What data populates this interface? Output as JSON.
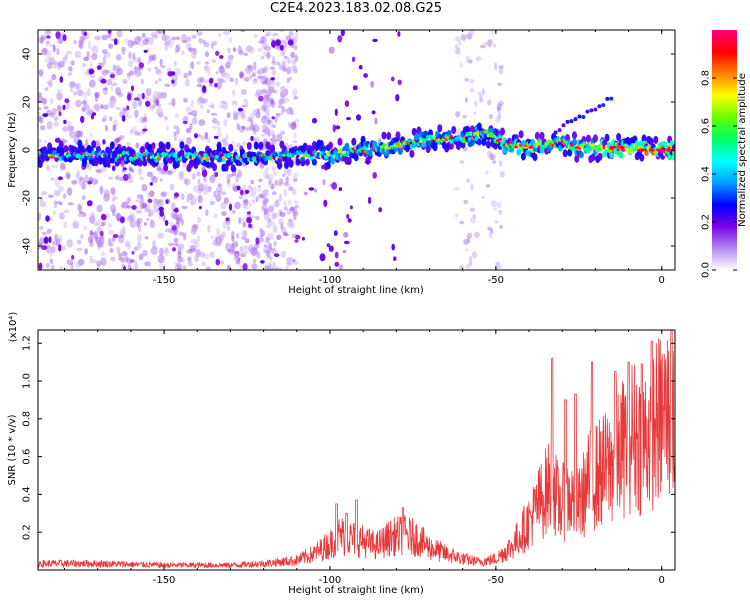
{
  "title": "C2E4.2023.183.02.08.G25",
  "chart_data": [
    {
      "type": "heatmap",
      "name": "spectrogram",
      "xlabel": "Height of straight line (km)",
      "ylabel": "Frequency (Hz)",
      "xlim": [
        -188,
        4
      ],
      "ylim": [
        -50,
        50
      ],
      "xticks": [
        -150,
        -100,
        -50,
        0
      ],
      "yticks": [
        -40,
        -20,
        0,
        20,
        40
      ],
      "colorbar": {
        "label": "Normalized spectral amplitude",
        "range": [
          0,
          1
        ],
        "ticks": [
          "0.0",
          "0.2",
          "0.4",
          "0.6",
          "0.8"
        ],
        "colormap": [
          "#ffffff",
          "#b388f0",
          "#7a00e6",
          "#0000ff",
          "#00a0ff",
          "#00ffff",
          "#00ff66",
          "#66ff00",
          "#ffff00",
          "#ff8000",
          "#ff0000",
          "#ff0080"
        ]
      },
      "ridge": {
        "description_points": [
          [
            -188,
            -2
          ],
          [
            -150,
            -3
          ],
          [
            -120,
            -3
          ],
          [
            -100,
            -2
          ],
          [
            -90,
            0
          ],
          [
            -80,
            2
          ],
          [
            -70,
            4
          ],
          [
            -60,
            5
          ],
          [
            -52,
            7
          ],
          [
            -48,
            3
          ],
          [
            -40,
            1
          ],
          [
            -30,
            3
          ],
          [
            -25,
            1
          ],
          [
            -15,
            1
          ],
          [
            -5,
            0
          ],
          [
            3,
            0
          ]
        ],
        "peak_amplitude_region_x": [
          -20,
          3
        ]
      }
    },
    {
      "type": "line",
      "name": "snr",
      "xlabel": "Height of straight line (km)",
      "ylabel": "SNR (10 * v/v)",
      "yunit_label": "(x10⁴)",
      "xlim": [
        -188,
        4
      ],
      "ylim": [
        0,
        1.27
      ],
      "xticks": [
        -150,
        -100,
        -50,
        0
      ],
      "yticks": [
        0.2,
        0.4,
        0.6,
        0.8,
        1.0,
        1.2
      ],
      "ytick_labels": [
        "0.2",
        "0.4",
        "0.6",
        "0.8",
        "1.0",
        "1.2"
      ],
      "color": "#e8383a",
      "envelope": [
        [
          -188,
          0.04
        ],
        [
          -170,
          0.04
        ],
        [
          -150,
          0.03
        ],
        [
          -130,
          0.03
        ],
        [
          -120,
          0.04
        ],
        [
          -110,
          0.06
        ],
        [
          -105,
          0.1
        ],
        [
          -100,
          0.16
        ],
        [
          -97,
          0.22
        ],
        [
          -94,
          0.2
        ],
        [
          -90,
          0.18
        ],
        [
          -86,
          0.15
        ],
        [
          -82,
          0.2
        ],
        [
          -78,
          0.22
        ],
        [
          -74,
          0.2
        ],
        [
          -70,
          0.14
        ],
        [
          -65,
          0.1
        ],
        [
          -60,
          0.07
        ],
        [
          -55,
          0.05
        ],
        [
          -50,
          0.07
        ],
        [
          -45,
          0.15
        ],
        [
          -40,
          0.3
        ],
        [
          -36,
          0.45
        ],
        [
          -33,
          0.55
        ],
        [
          -31,
          0.4
        ],
        [
          -28,
          0.45
        ],
        [
          -25,
          0.4
        ],
        [
          -22,
          0.55
        ],
        [
          -19,
          0.6
        ],
        [
          -15,
          0.65
        ],
        [
          -12,
          0.75
        ],
        [
          -9,
          0.85
        ],
        [
          -6,
          0.8
        ],
        [
          -3,
          0.88
        ],
        [
          0,
          0.95
        ],
        [
          2,
          0.98
        ],
        [
          4,
          0.9
        ]
      ],
      "peaks": [
        [
          -98,
          0.35
        ],
        [
          -95,
          0.3
        ],
        [
          -92,
          0.37
        ],
        [
          -78,
          0.33
        ],
        [
          -33,
          1.12
        ],
        [
          -29,
          0.9
        ],
        [
          -26,
          0.93
        ],
        [
          -21,
          1.1
        ],
        [
          -14,
          1.05
        ],
        [
          -10,
          1.1
        ],
        [
          -6,
          1.09
        ],
        [
          -3,
          1.21
        ],
        [
          3,
          1.28
        ]
      ]
    }
  ]
}
